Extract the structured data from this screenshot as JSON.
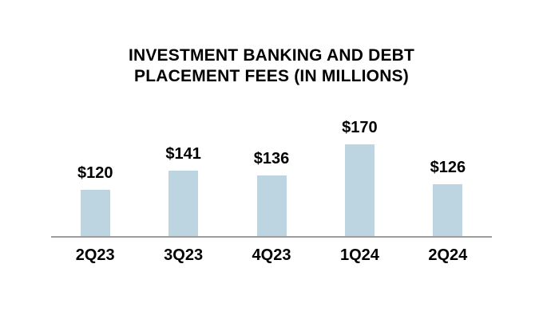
{
  "chart": {
    "title": "INVESTMENT BANKING AND DEBT PLACEMENT FEES (IN MILLIONS)"
  },
  "chart_data": {
    "type": "bar",
    "title": "INVESTMENT BANKING AND DEBT PLACEMENT FEES (IN MILLIONS)",
    "categories": [
      "2Q23",
      "3Q23",
      "4Q23",
      "1Q24",
      "2Q24"
    ],
    "values": [
      120,
      141,
      136,
      170,
      126
    ],
    "value_labels": [
      "$120",
      "$141",
      "$136",
      "$170",
      "$126"
    ],
    "xlabel": "",
    "ylabel": "",
    "ylim": [
      70,
      180
    ],
    "grid": false,
    "legend": false,
    "bar_color": "#BCD5E0",
    "axis_line_color": "#9D9D9D",
    "text_color": "#000000",
    "background": "#FFFFFF"
  }
}
